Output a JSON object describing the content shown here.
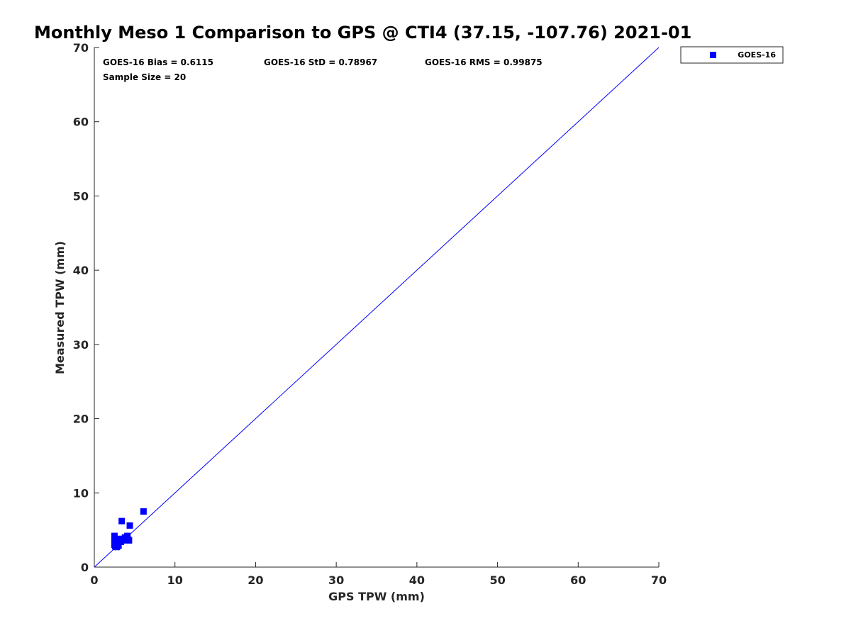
{
  "chart_data": {
    "type": "scatter",
    "title": "Monthly Meso 1 Comparison to GPS @ CTI4 (37.15, -107.76) 2021-01",
    "xlabel": "GPS TPW (mm)",
    "ylabel": "Measured TPW (mm)",
    "xlim": [
      0,
      70
    ],
    "ylim": [
      0,
      70
    ],
    "xticks": [
      "0",
      "10",
      "20",
      "30",
      "40",
      "50",
      "60",
      "70"
    ],
    "yticks": [
      "0",
      "10",
      "20",
      "30",
      "40",
      "50",
      "60",
      "70"
    ],
    "grid": false,
    "legend_position": "top-right-outside",
    "reference_line": {
      "x": [
        0,
        70
      ],
      "y": [
        0,
        70
      ],
      "color": "#0000ff"
    },
    "annotations": {
      "bias": "GOES-16 Bias = 0.6115",
      "std": "GOES-16 StD = 0.78967",
      "rms": "GOES-16 RMS = 0.99875",
      "sample_size": "Sample Size = 20"
    },
    "series": [
      {
        "name": "GOES-16",
        "color": "#0000ff",
        "marker": "square",
        "points": [
          {
            "x": 2.5,
            "y": 4.2
          },
          {
            "x": 2.5,
            "y": 3.7
          },
          {
            "x": 2.5,
            "y": 3.0
          },
          {
            "x": 2.6,
            "y": 2.8
          },
          {
            "x": 2.7,
            "y": 3.2
          },
          {
            "x": 2.8,
            "y": 2.7
          },
          {
            "x": 2.9,
            "y": 3.5
          },
          {
            "x": 3.0,
            "y": 2.9
          },
          {
            "x": 3.1,
            "y": 3.8
          },
          {
            "x": 3.3,
            "y": 3.4
          },
          {
            "x": 3.4,
            "y": 6.2
          },
          {
            "x": 3.5,
            "y": 3.6
          },
          {
            "x": 3.7,
            "y": 3.7
          },
          {
            "x": 3.8,
            "y": 4.0
          },
          {
            "x": 4.0,
            "y": 3.9
          },
          {
            "x": 4.1,
            "y": 4.2
          },
          {
            "x": 4.2,
            "y": 3.7
          },
          {
            "x": 4.3,
            "y": 3.6
          },
          {
            "x": 4.4,
            "y": 5.6
          },
          {
            "x": 6.1,
            "y": 7.5
          }
        ]
      }
    ]
  }
}
